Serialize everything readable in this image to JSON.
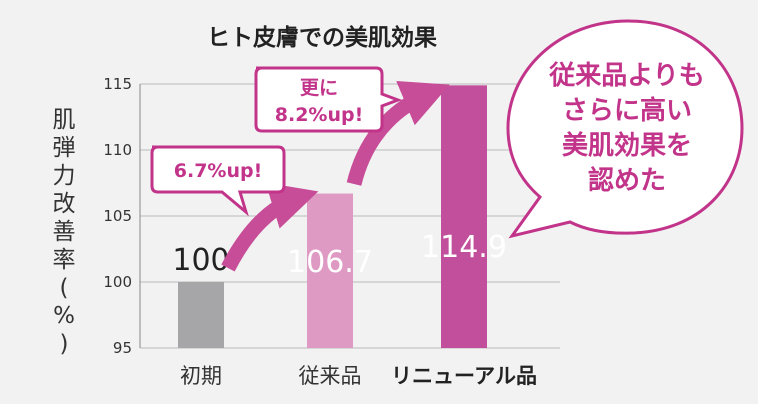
{
  "chart_data": {
    "type": "bar",
    "title": "ヒト皮膚での美肌効果",
    "ylabel": "肌弾力改善率(%)",
    "xlabel": "",
    "categories": [
      "初期",
      "従来品",
      "リニューアル品"
    ],
    "values": [
      100,
      106.7,
      114.9
    ],
    "value_labels": [
      "100",
      "106.7",
      "114.9"
    ],
    "ylim": [
      95,
      115
    ],
    "yticks": [
      95,
      100,
      105,
      110,
      115
    ],
    "grid": true,
    "bar_colors": [
      "#a6a6a8",
      "#df9ac4",
      "#c24f9b"
    ],
    "annotations": {
      "step1": "6.7%up!",
      "step2_line1": "更に",
      "step2_line2": "8.2%up!",
      "bubble_lines": [
        "従来品よりも",
        "さらに高い",
        "美肌効果を",
        "認めた"
      ]
    }
  },
  "colors": {
    "accent": "#c2348a",
    "arrow": "#c74d98",
    "grid": "#bbbbbb"
  }
}
